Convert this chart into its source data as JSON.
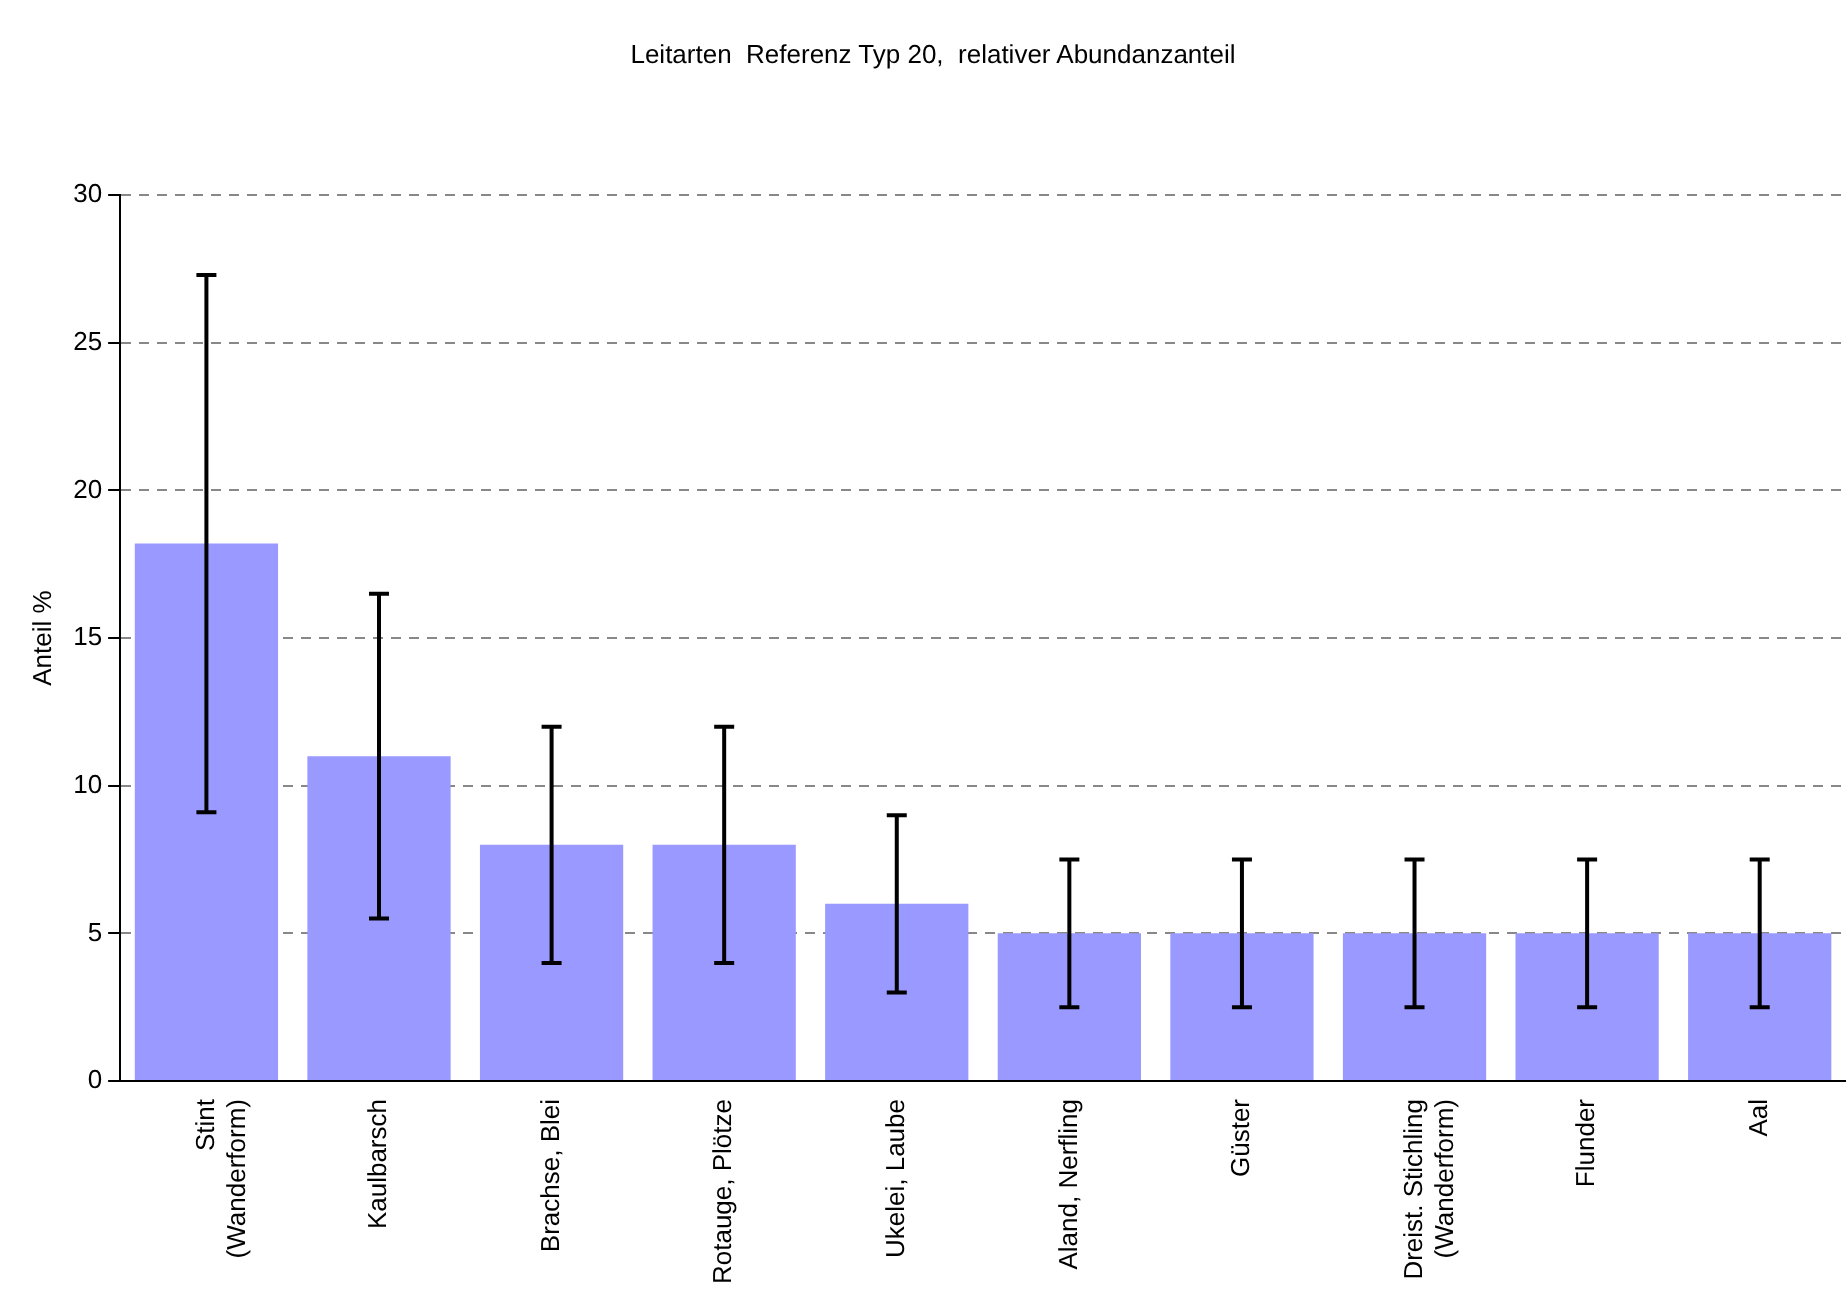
{
  "chart_data": {
    "type": "bar",
    "title": "Leitarten  Referenz Typ 20,  relativer Abundanzanteil",
    "ylabel": "Anteil %",
    "categories": [
      "Stint\n(Wanderform)",
      "Kaulbarsch",
      "Brachse, Blei",
      "Rotauge, Plötze",
      "Ukelei, Laube",
      "Aland, Nerfling",
      "Güster",
      "Dreist. Stichling\n(Wanderform)",
      "Flunder",
      "Aal"
    ],
    "values": [
      18.2,
      11,
      8,
      8,
      6,
      5,
      5,
      5,
      5,
      5
    ],
    "errors": [
      9.1,
      5.5,
      4,
      4,
      3,
      2.5,
      2.5,
      2.5,
      2.5,
      2.5
    ],
    "color": "#9999ff",
    "ylim": [
      0,
      30
    ],
    "yticks": [
      0,
      5,
      10,
      15,
      20,
      25,
      30
    ],
    "grid": "y",
    "legend": false
  }
}
